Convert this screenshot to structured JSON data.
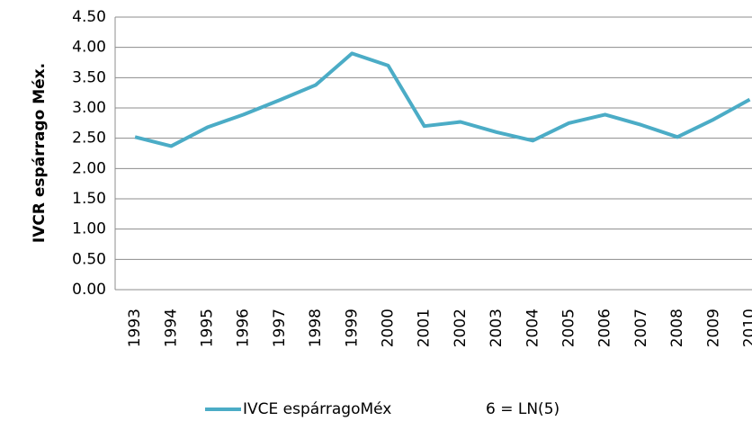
{
  "chart_data": {
    "type": "line",
    "y_label": "IVCR espárrago Méx.",
    "categories": [
      "1993",
      "1994",
      "1995",
      "1996",
      "1997",
      "1998",
      "1999",
      "2000",
      "2001",
      "2002",
      "2003",
      "2004",
      "2005",
      "2006",
      "2007",
      "2008",
      "2009",
      "2010"
    ],
    "series": [
      {
        "name": "IVCE espárragoMéx",
        "color": "#4bacc6",
        "values": [
          2.52,
          2.37,
          2.68,
          2.89,
          3.13,
          3.38,
          3.9,
          3.7,
          2.7,
          2.77,
          2.6,
          2.46,
          2.75,
          2.89,
          2.72,
          2.52,
          2.81,
          3.14
        ]
      }
    ],
    "legend_note": "6 = LN(5)",
    "ylim": [
      0,
      4.5
    ],
    "yticks": [
      {
        "value": 0,
        "label": "0.00"
      },
      {
        "value": 0.5,
        "label": "0.50"
      },
      {
        "value": 1,
        "label": "1.00"
      },
      {
        "value": 1.5,
        "label": "1.50"
      },
      {
        "value": 2,
        "label": "2.00"
      },
      {
        "value": 2.5,
        "label": "2.50"
      },
      {
        "value": 3,
        "label": "3.00"
      },
      {
        "value": 3.5,
        "label": "3.50"
      },
      {
        "value": 4,
        "label": "4.00"
      },
      {
        "value": 4.5,
        "label": "4.50"
      }
    ],
    "grid": true
  }
}
